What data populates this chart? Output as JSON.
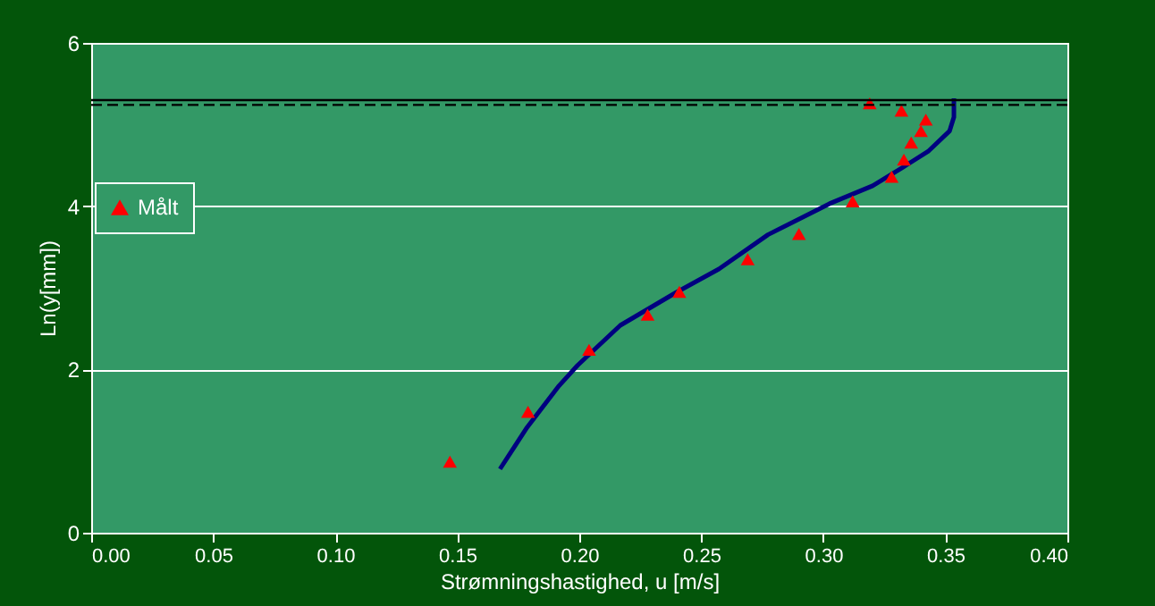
{
  "chart_data": {
    "type": "line",
    "xlabel": "Strømningshastighed, u [m/s]",
    "ylabel": "Ln(y[mm])",
    "xlim": [
      0,
      0.4
    ],
    "xticks": [
      {
        "value": 0,
        "label": "0.00"
      },
      {
        "value": 0.05,
        "label": "0.05"
      },
      {
        "value": 0.1,
        "label": "0.10"
      },
      {
        "value": 0.15,
        "label": "0.15"
      },
      {
        "value": 0.2,
        "label": "0.20"
      },
      {
        "value": 0.25,
        "label": "0.25"
      },
      {
        "value": 0.3,
        "label": "0.30"
      },
      {
        "value": 0.35,
        "label": "0.35"
      },
      {
        "value": 0.4,
        "label": "0.40"
      }
    ],
    "ylim": [
      0,
      6
    ],
    "yticks": [
      0,
      2,
      4,
      6
    ],
    "grid": "y",
    "legend": "left",
    "series": [
      {
        "color": "#000080",
        "line_style": "solid",
        "marker": "none",
        "x": [
          0.1675,
          0.1786,
          0.1917,
          0.1993,
          0.2168,
          0.2395,
          0.2572,
          0.2773,
          0.3025,
          0.3202,
          0.3328,
          0.3429,
          0.3517,
          0.3535,
          0.3535
        ],
        "values": [
          0.78,
          1.29,
          1.8,
          2.05,
          2.54,
          2.94,
          3.23,
          3.65,
          4.03,
          4.25,
          4.48,
          4.67,
          4.92,
          5.09,
          5.32
        ]
      },
      {
        "type": "scatter",
        "name": "Målt",
        "color": "#ff0000",
        "marker": "triangle",
        "x": [
          0.147,
          0.179,
          0.204,
          0.228,
          0.241,
          0.269,
          0.29,
          0.312,
          0.328,
          0.333,
          0.336,
          0.34,
          0.342,
          0.332,
          0.319
        ],
        "values": [
          0.87,
          1.48,
          2.24,
          2.67,
          2.95,
          3.35,
          3.66,
          4.06,
          4.36,
          4.57,
          4.78,
          4.92,
          5.06,
          5.17,
          5.26
        ]
      }
    ],
    "ref_lines": [
      {
        "axis": "y",
        "value": 5.3,
        "color": "#000000",
        "line_style": "solid"
      },
      {
        "axis": "y",
        "value": 5.24,
        "color": "#000000",
        "line_style": "dashed"
      }
    ]
  }
}
